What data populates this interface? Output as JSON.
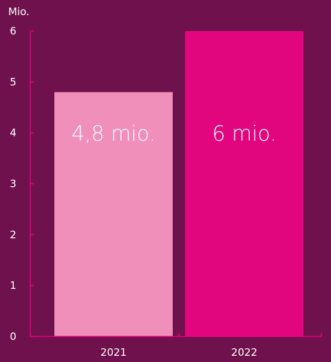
{
  "chart_data": {
    "type": "bar",
    "title": "",
    "xlabel": "",
    "ylabel": "Mio.",
    "ylim": [
      0,
      6
    ],
    "yticks": [
      0,
      1,
      2,
      3,
      4,
      5,
      6
    ],
    "grid": false,
    "legend": "none",
    "categories": [
      "2021",
      "2022"
    ],
    "values": [
      4.8,
      6
    ],
    "data_labels": [
      "4,8 mio.",
      "6 mio."
    ],
    "colors": {
      "background": "#6f114d",
      "axis": "#e6007e",
      "bars": [
        "#ef8fba",
        "#e2067e"
      ],
      "text": "#ffffff"
    }
  }
}
